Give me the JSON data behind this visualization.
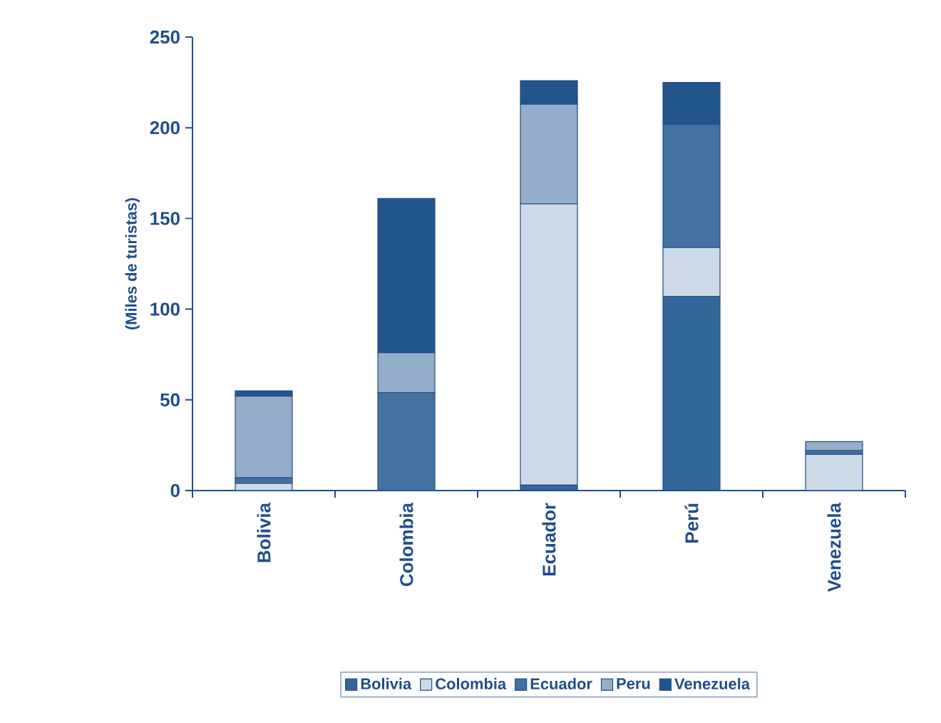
{
  "chart_data": {
    "type": "bar",
    "stacked": true,
    "ylabel": "(Miles de turistas)",
    "categories": [
      "Bolivia",
      "Colombia",
      "Ecuador",
      "Perú",
      "Venezuela"
    ],
    "series": [
      {
        "name": "Bolivia",
        "color": "#336699",
        "values": [
          0,
          0,
          3,
          107,
          0
        ]
      },
      {
        "name": "Colombia",
        "color": "#ccd9e6",
        "values": [
          4,
          0,
          155,
          27,
          20
        ]
      },
      {
        "name": "Ecuador",
        "color": "#4472a0",
        "values": [
          3,
          54,
          0,
          68,
          2
        ]
      },
      {
        "name": "Peru",
        "color": "#94adc8",
        "values": [
          45,
          22,
          55,
          0,
          5
        ]
      },
      {
        "name": "Venezuela",
        "color": "#22558c",
        "values": [
          3,
          85,
          13,
          23,
          0
        ]
      }
    ],
    "ylim": [
      0,
      250
    ],
    "yticks": [
      0,
      50,
      100,
      150,
      200,
      250
    ],
    "grid": false,
    "legend": "bottom"
  }
}
